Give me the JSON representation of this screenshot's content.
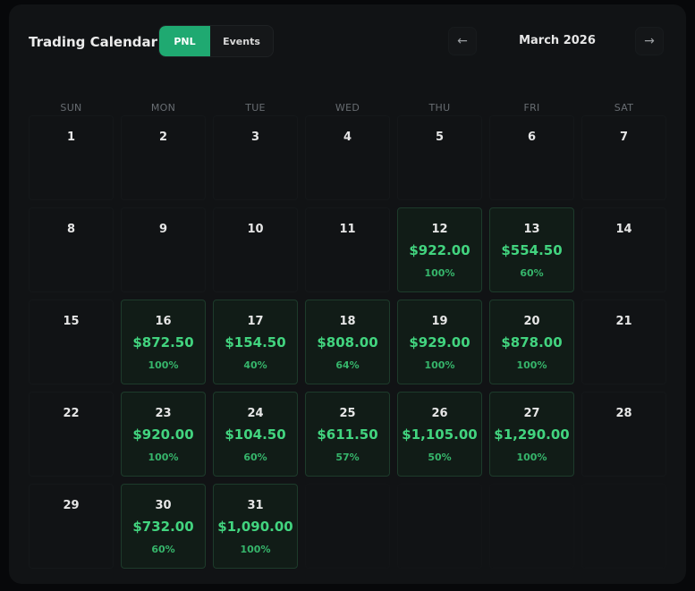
{
  "header": {
    "title": "Trading Calendar",
    "tabs": [
      {
        "label": "PNL",
        "active": true
      },
      {
        "label": "Events",
        "active": false
      }
    ],
    "prev_icon": "arrow-left-icon",
    "prev_label": "←",
    "month_label": "March 2026",
    "next_icon": "arrow-right-icon",
    "next_label": "→"
  },
  "colors": {
    "accent": "#1fa971",
    "profit_text": "#42d47f",
    "background": "#111315"
  },
  "weekdays": [
    "SUN",
    "MON",
    "TUE",
    "WED",
    "THU",
    "FRI",
    "SAT"
  ],
  "weeks": [
    [
      {
        "day": "1"
      },
      {
        "day": "2"
      },
      {
        "day": "3"
      },
      {
        "day": "4"
      },
      {
        "day": "5"
      },
      {
        "day": "6"
      },
      {
        "day": "7"
      }
    ],
    [
      {
        "day": "8"
      },
      {
        "day": "9"
      },
      {
        "day": "10"
      },
      {
        "day": "11"
      },
      {
        "day": "12",
        "pnl": "$922.00",
        "pct": "100%"
      },
      {
        "day": "13",
        "pnl": "$554.50",
        "pct": "60%"
      },
      {
        "day": "14"
      }
    ],
    [
      {
        "day": "15"
      },
      {
        "day": "16",
        "pnl": "$872.50",
        "pct": "100%"
      },
      {
        "day": "17",
        "pnl": "$154.50",
        "pct": "40%"
      },
      {
        "day": "18",
        "pnl": "$808.00",
        "pct": "64%"
      },
      {
        "day": "19",
        "pnl": "$929.00",
        "pct": "100%"
      },
      {
        "day": "20",
        "pnl": "$878.00",
        "pct": "100%"
      },
      {
        "day": "21"
      }
    ],
    [
      {
        "day": "22"
      },
      {
        "day": "23",
        "pnl": "$920.00",
        "pct": "100%"
      },
      {
        "day": "24",
        "pnl": "$104.50",
        "pct": "60%"
      },
      {
        "day": "25",
        "pnl": "$611.50",
        "pct": "57%"
      },
      {
        "day": "26",
        "pnl": "$1,105.00",
        "pct": "50%"
      },
      {
        "day": "27",
        "pnl": "$1,290.00",
        "pct": "100%"
      },
      {
        "day": "28"
      }
    ],
    [
      {
        "day": "29"
      },
      {
        "day": "30",
        "pnl": "$732.00",
        "pct": "60%"
      },
      {
        "day": "31",
        "pnl": "$1,090.00",
        "pct": "100%"
      },
      {
        "day": ""
      },
      {
        "day": ""
      },
      {
        "day": ""
      },
      {
        "day": ""
      }
    ]
  ]
}
